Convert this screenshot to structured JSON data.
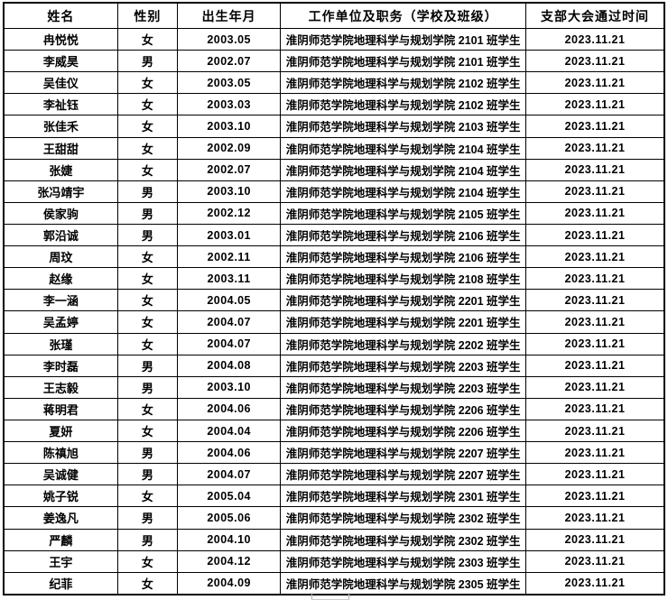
{
  "table": {
    "headers": {
      "name": "姓名",
      "gender": "性别",
      "birth": "出生年月",
      "unit": "工作单位及职务（学校及班级）",
      "date": "支部大会通过时间"
    },
    "rows": [
      {
        "name": "冉悦悦",
        "gender": "女",
        "birth": "2003.05",
        "unit": "淮阴师范学院地理科学与规划学院 2101 班学生",
        "date": "2023.11.21"
      },
      {
        "name": "李威昊",
        "gender": "男",
        "birth": "2002.07",
        "unit": "淮阴师范学院地理科学与规划学院 2101 班学生",
        "date": "2023.11.21"
      },
      {
        "name": "吴佳仪",
        "gender": "女",
        "birth": "2003.05",
        "unit": "淮阴师范学院地理科学与规划学院 2102 班学生",
        "date": "2023.11.21"
      },
      {
        "name": "李祉钰",
        "gender": "女",
        "birth": "2003.03",
        "unit": "淮阴师范学院地理科学与规划学院 2102 班学生",
        "date": "2023.11.21"
      },
      {
        "name": "张佳禾",
        "gender": "女",
        "birth": "2003.10",
        "unit": "淮阴师范学院地理科学与规划学院 2103 班学生",
        "date": "2023.11.21"
      },
      {
        "name": "王甜甜",
        "gender": "女",
        "birth": "2002.09",
        "unit": "淮阴师范学院地理科学与规划学院 2104 班学生",
        "date": "2023.11.21"
      },
      {
        "name": "张婕",
        "gender": "女",
        "birth": "2002.07",
        "unit": "淮阴师范学院地理科学与规划学院 2104 班学生",
        "date": "2023.11.21"
      },
      {
        "name": "张冯靖宇",
        "gender": "男",
        "birth": "2003.10",
        "unit": "淮阴师范学院地理科学与规划学院 2104 班学生",
        "date": "2023.11.21"
      },
      {
        "name": "侯家驹",
        "gender": "男",
        "birth": "2002.12",
        "unit": "淮阴师范学院地理科学与规划学院 2105 班学生",
        "date": "2023.11.21"
      },
      {
        "name": "郭沿诚",
        "gender": "男",
        "birth": "2003.01",
        "unit": "淮阴师范学院地理科学与规划学院 2106 班学生",
        "date": "2023.11.21"
      },
      {
        "name": "周玟",
        "gender": "女",
        "birth": "2002.11",
        "unit": "淮阴师范学院地理科学与规划学院 2106 班学生",
        "date": "2023.11.21"
      },
      {
        "name": "赵缘",
        "gender": "女",
        "birth": "2003.11",
        "unit": "淮阴师范学院地理科学与规划学院 2108 班学生",
        "date": "2023.11.21"
      },
      {
        "name": "李一涵",
        "gender": "女",
        "birth": "2004.05",
        "unit": "淮阴师范学院地理科学与规划学院 2201 班学生",
        "date": "2023.11.21"
      },
      {
        "name": "吴孟婷",
        "gender": "女",
        "birth": "2004.07",
        "unit": "淮阴师范学院地理科学与规划学院 2201 班学生",
        "date": "2023.11.21"
      },
      {
        "name": "张瑾",
        "gender": "女",
        "birth": "2004.07",
        "unit": "淮阴师范学院地理科学与规划学院 2202 班学生",
        "date": "2023.11.21"
      },
      {
        "name": "李时磊",
        "gender": "男",
        "birth": "2004.08",
        "unit": "淮阴师范学院地理科学与规划学院 2203 班学生",
        "date": "2023.11.21"
      },
      {
        "name": "王志毅",
        "gender": "男",
        "birth": "2003.10",
        "unit": "淮阴师范学院地理科学与规划学院 2203 班学生",
        "date": "2023.11.21"
      },
      {
        "name": "蒋明君",
        "gender": "女",
        "birth": "2004.06",
        "unit": "淮阴师范学院地理科学与规划学院 2206 班学生",
        "date": "2023.11.21"
      },
      {
        "name": "夏妍",
        "gender": "女",
        "birth": "2004.04",
        "unit": "淮阴师范学院地理科学与规划学院 2206 班学生",
        "date": "2023.11.21"
      },
      {
        "name": "陈禛旭",
        "gender": "男",
        "birth": "2004.06",
        "unit": "淮阴师范学院地理科学与规划学院 2207 班学生",
        "date": "2023.11.21"
      },
      {
        "name": "吴诚健",
        "gender": "男",
        "birth": "2004.07",
        "unit": "淮阴师范学院地理科学与规划学院 2207 班学生",
        "date": "2023.11.21"
      },
      {
        "name": "姚子锐",
        "gender": "女",
        "birth": "2005.04",
        "unit": "淮阴师范学院地理科学与规划学院 2301 班学生",
        "date": "2023.11.21"
      },
      {
        "name": "姜逸凡",
        "gender": "男",
        "birth": "2005.06",
        "unit": "淮阴师范学院地理科学与规划学院 2302 班学生",
        "date": "2023.11.21"
      },
      {
        "name": "严麟",
        "gender": "男",
        "birth": "2004.10",
        "unit": "淮阴师范学院地理科学与规划学院 2302 班学生",
        "date": "2023.11.21"
      },
      {
        "name": "王宇",
        "gender": "女",
        "birth": "2004.12",
        "unit": "淮阴师范学院地理科学与规划学院 2303 班学生",
        "date": "2023.11.21"
      },
      {
        "name": "纪菲",
        "gender": "女",
        "birth": "2004.09",
        "unit": "淮阴师范学院地理科学与规划学院 2305 班学生",
        "date": "2023.11.21"
      }
    ]
  }
}
